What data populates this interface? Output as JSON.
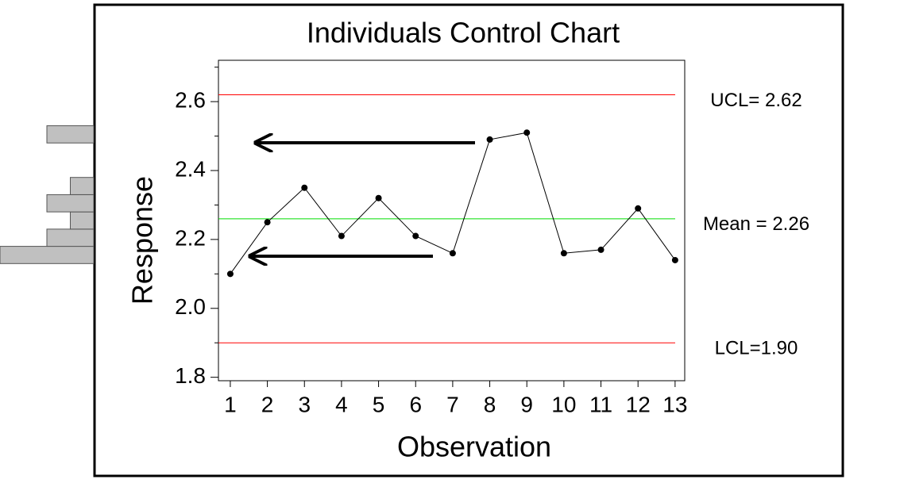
{
  "chart_data": {
    "type": "line",
    "title": "Individuals Control Chart",
    "x_label": "Observation",
    "y_label": "Response",
    "x": [
      1,
      2,
      3,
      4,
      5,
      6,
      7,
      8,
      9,
      10,
      11,
      12,
      13
    ],
    "xticks": [
      1,
      2,
      3,
      4,
      5,
      6,
      7,
      8,
      9,
      10,
      11,
      12,
      13
    ],
    "xlim": [
      0.68,
      13.26
    ],
    "series": [
      {
        "color": "#000000",
        "values": [
          2.1,
          2.25,
          2.35,
          2.21,
          2.32,
          2.21,
          2.16,
          2.49,
          2.51,
          2.16,
          2.17,
          2.29,
          2.14
        ]
      }
    ],
    "ylim": [
      1.79,
      2.72
    ],
    "yticks": [
      {
        "value": 1.8,
        "label": "1.8"
      },
      {
        "value": 2.0,
        "label": "2.0"
      },
      {
        "value": 2.2,
        "label": "2.2"
      },
      {
        "value": 2.4,
        "label": "2.4"
      },
      {
        "value": 2.6,
        "label": "2.6"
      }
    ],
    "yminorticks": [
      1.9,
      2.1,
      2.3,
      2.5,
      2.7
    ],
    "control_lines": [
      {
        "label": "UCL= 2.62",
        "value": 2.62,
        "color": "#ff0000"
      },
      {
        "label": "Mean = 2.26",
        "value": 2.26,
        "color": "#00dd00"
      },
      {
        "label": "LCL=1.90",
        "value": 1.9,
        "color": "#ff0000"
      }
    ],
    "histogram": {
      "bins": [
        2.13,
        2.18,
        2.23,
        2.28,
        2.33,
        2.38,
        2.43,
        2.48,
        2.53
      ],
      "counts": [
        4,
        2,
        1,
        2,
        1,
        0,
        0,
        2
      ],
      "color": "#c0c0c0"
    }
  }
}
